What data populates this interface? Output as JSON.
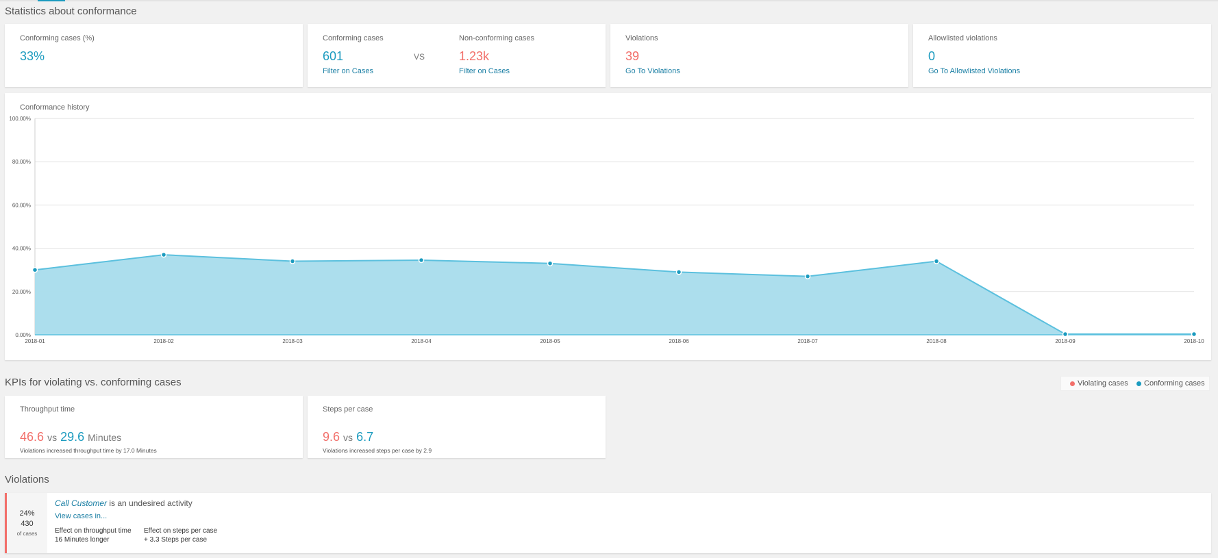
{
  "sections": {
    "stats_title": "Statistics about conformance",
    "kpi_title": "KPIs for violating vs. conforming cases",
    "violations_title": "Violations"
  },
  "stats": {
    "conforming_pct": {
      "label": "Conforming cases (%)",
      "value": "33%"
    },
    "conforming": {
      "label": "Conforming cases",
      "value": "601",
      "link": "Filter on Cases"
    },
    "vs": "VS",
    "nonconforming": {
      "label": "Non-conforming cases",
      "value": "1.23k",
      "link": "Filter on Cases"
    },
    "violations": {
      "label": "Violations",
      "value": "39",
      "link": "Go To Violations"
    },
    "allowlisted": {
      "label": "Allowlisted violations",
      "value": "0",
      "link": "Go To Allowlisted Violations"
    }
  },
  "chart_title": "Conformance history",
  "chart_data": {
    "type": "area",
    "title": "Conformance history",
    "x": [
      "2018-01",
      "2018-02",
      "2018-03",
      "2018-04",
      "2018-05",
      "2018-06",
      "2018-07",
      "2018-08",
      "2018-09",
      "2018-10"
    ],
    "series": [
      {
        "values": [
          30,
          37,
          34,
          34.5,
          33,
          29,
          27,
          34,
          0.3,
          0.3
        ]
      }
    ],
    "y_ticks": [
      "0.00%",
      "20.00%",
      "40.00%",
      "60.00%",
      "80.00%",
      "100.00%"
    ],
    "ylim": [
      0,
      100
    ],
    "grid": true,
    "colors": {
      "line": "#5bc0de",
      "fill": "#a8dcec",
      "point": "#1b9bbf"
    }
  },
  "legend": {
    "violating": "Violating cases",
    "conforming": "Conforming cases",
    "violating_color": "#f26f6a",
    "conforming_color": "#1b9bbf"
  },
  "kpis": {
    "throughput": {
      "label": "Throughput time",
      "violating": "46.6",
      "vs": "vs",
      "conforming": "29.6",
      "unit": "Minutes",
      "note": "Violations increased throughput time by 17.0 Minutes"
    },
    "steps": {
      "label": "Steps per case",
      "violating": "9.6",
      "vs": "vs",
      "conforming": "6.7",
      "note": "Violations increased steps per case by 2.9"
    }
  },
  "violation_item": {
    "pct": "24%",
    "count": "430",
    "of_cases": "of cases",
    "activity": "Call Customer",
    "description": " is an undesired activity",
    "link": "View cases in...",
    "effect_throughput_label": "Effect on throughput time",
    "effect_throughput_value": "16 Minutes longer",
    "effect_steps_label": "Effect on steps per case",
    "effect_steps_value": "+ 3.3 Steps per case"
  }
}
